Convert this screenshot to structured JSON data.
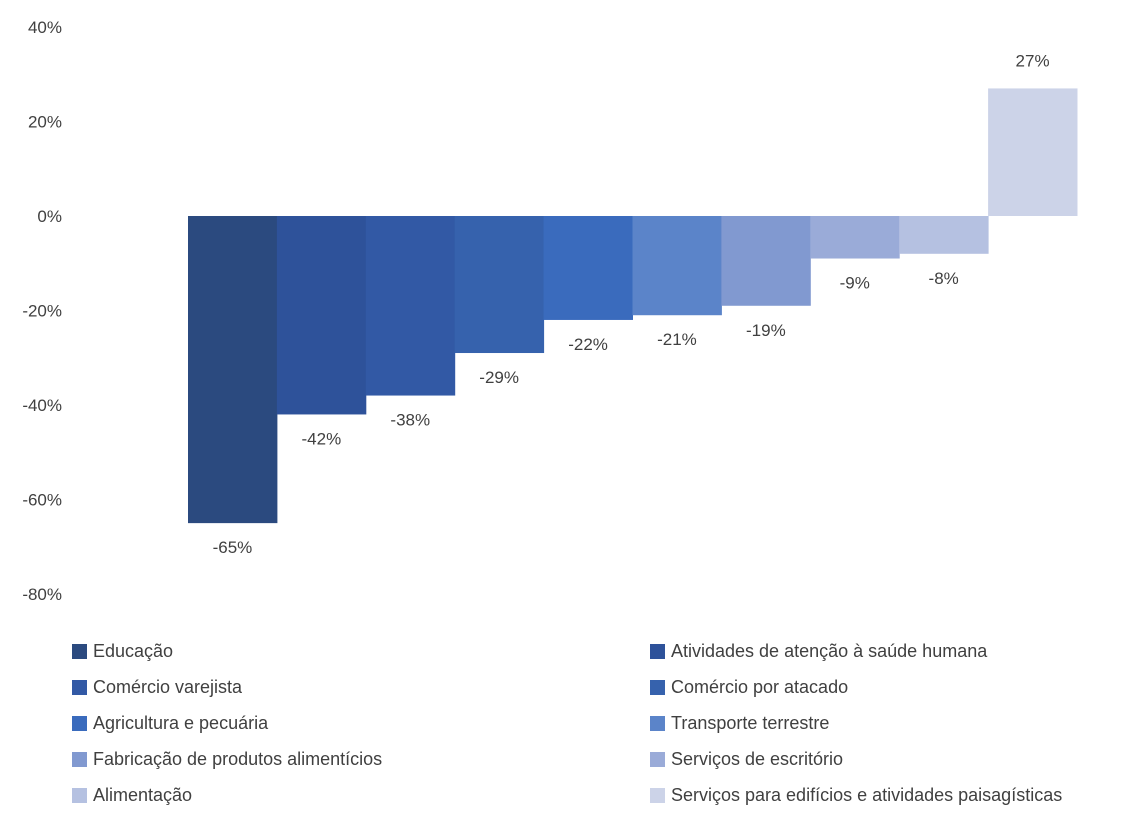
{
  "chart_data": {
    "type": "bar",
    "categories": [
      "Educação",
      "Atividades de atenção à saúde humana",
      "Comércio varejista",
      "Comércio por atacado",
      "Agricultura e pecuária",
      "Transporte terrestre",
      "Fabricação de produtos alimentícios",
      "Serviços de escritório",
      "Alimentação",
      "Serviços para edifícios e atividades paisagísticas"
    ],
    "values": [
      -65,
      -42,
      -38,
      -29,
      -22,
      -21,
      -19,
      -9,
      -8,
      27
    ],
    "value_labels": [
      "-65%",
      "-42%",
      "-38%",
      "-29%",
      "-22%",
      "-21%",
      "-19%",
      "-9%",
      "-8%",
      "27%"
    ],
    "colors": [
      "#2b4a7f",
      "#2e529a",
      "#3259a5",
      "#3662ad",
      "#3a6bbd",
      "#5b84c9",
      "#8199d0",
      "#9aabd8",
      "#b5c1e1",
      "#ccd3e8"
    ],
    "y_ticks": [
      40,
      20,
      0,
      -20,
      -40,
      -60,
      -80
    ],
    "y_tick_labels": [
      "40%",
      "20%",
      "0%",
      "-20%",
      "-40%",
      "-60%",
      "-80%"
    ],
    "ylim": [
      -80,
      40
    ],
    "title": "",
    "xlabel": "",
    "ylabel": "",
    "grid": false,
    "legend_position": "bottom"
  }
}
